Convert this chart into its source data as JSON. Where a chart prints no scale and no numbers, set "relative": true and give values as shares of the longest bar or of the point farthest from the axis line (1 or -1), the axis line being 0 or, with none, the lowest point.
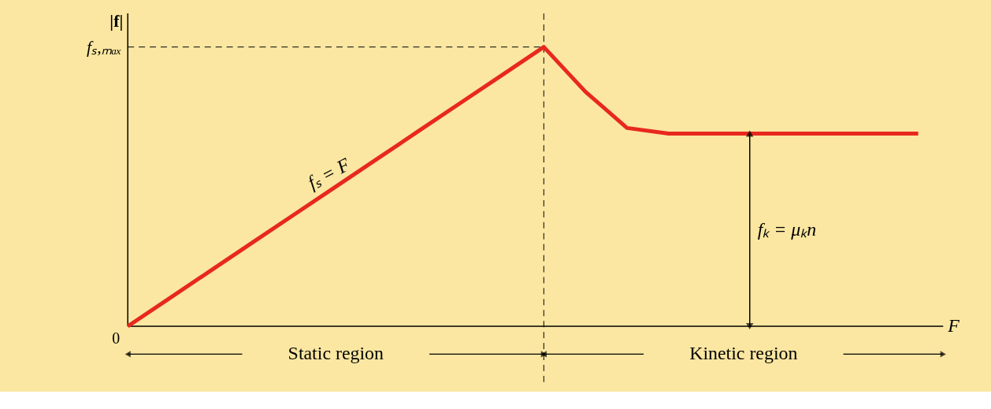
{
  "chart_data": {
    "type": "line",
    "relative": true,
    "xlabel": "F",
    "ylabel": "|f|",
    "categories": [
      null,
      null,
      null,
      null,
      null,
      null,
      null,
      null,
      null,
      null,
      null,
      null,
      null,
      null,
      null,
      null,
      null,
      null,
      null,
      null
    ],
    "series": [
      {
        "color": "#e8281e",
        "values": [
          0,
          0.1,
          0.2,
          0.3,
          0.4,
          0.5,
          0.6,
          0.7,
          0.8,
          0.9,
          1,
          0.84,
          0.71,
          0.69,
          0.69,
          0.69,
          0.69,
          0.69,
          0.69,
          0.69
        ]
      }
    ],
    "annotations": [
      "fₛ = F",
      "fₖ = μₖn",
      "fₛ,ₘₐₓ",
      "0",
      "Static region",
      "Kinetic region"
    ],
    "line_style": "solid"
  }
}
